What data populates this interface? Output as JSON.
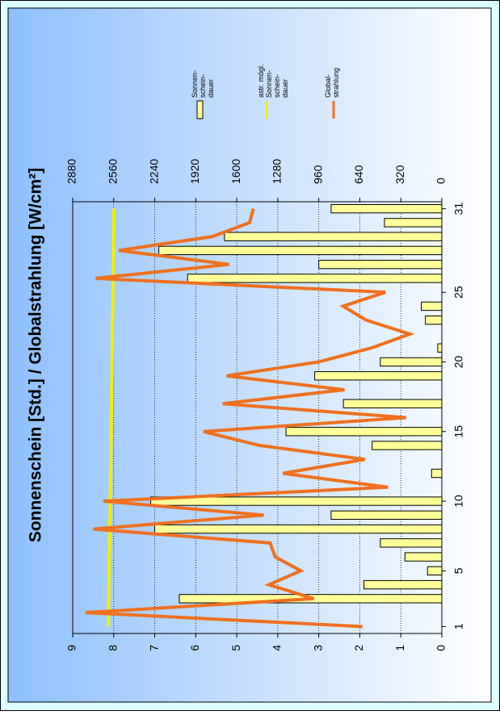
{
  "chart_data": {
    "type": "bar",
    "title": "Sonnenschein [Std.] / Globalstrahlung [W/cm²]",
    "x": [
      1,
      2,
      3,
      4,
      5,
      6,
      7,
      8,
      9,
      10,
      11,
      12,
      13,
      14,
      15,
      16,
      17,
      18,
      19,
      20,
      21,
      22,
      23,
      24,
      25,
      26,
      27,
      28,
      29,
      30,
      31
    ],
    "xlim": [
      0.5,
      31.5
    ],
    "xticks": [
      1,
      5,
      10,
      15,
      20,
      25,
      31
    ],
    "ylim": [
      0,
      9
    ],
    "yticks": [
      0,
      1,
      2,
      3,
      4,
      5,
      6,
      7,
      8,
      9
    ],
    "y2lim": [
      0,
      2880
    ],
    "y2ticks": [
      0,
      320,
      640,
      960,
      1280,
      1600,
      1920,
      2240,
      2560,
      2880
    ],
    "grid": true,
    "series": [
      {
        "name": "Sonnen-\nschein-\ndauer",
        "type": "bar",
        "color": "#ffff99",
        "values": [
          0,
          0,
          6.4,
          1.9,
          0.35,
          0.9,
          1.5,
          7.0,
          2.7,
          7.1,
          0,
          0.25,
          0,
          1.7,
          3.8,
          0,
          2.4,
          0,
          3.1,
          1.5,
          0.1,
          0,
          0.4,
          0.5,
          0,
          6.2,
          3.0,
          6.9,
          5.3,
          1.4,
          2.7
        ]
      },
      {
        "name": "astr. mögl.\nSonnen-\nschein-\ndauer",
        "type": "line",
        "color": "#f0f000",
        "values": [
          8.13,
          8.13,
          8.12,
          8.12,
          8.11,
          8.11,
          8.1,
          8.1,
          8.09,
          8.09,
          8.08,
          8.08,
          8.07,
          8.07,
          8.06,
          8.06,
          8.05,
          8.05,
          8.04,
          8.04,
          8.03,
          8.03,
          8.03,
          8.02,
          8.02,
          8.02,
          8.01,
          8.01,
          8.01,
          8.0,
          8.0
        ]
      },
      {
        "name": "Global-\nstrahlung",
        "type": "line",
        "color": "#f07020",
        "axis": "y2",
        "values": [
          620,
          2780,
          1000,
          1350,
          1100,
          1300,
          1340,
          2720,
          1390,
          2640,
          420,
          1240,
          600,
          1420,
          1860,
          280,
          1710,
          760,
          1680,
          960,
          550,
          250,
          590,
          770,
          440,
          2700,
          1660,
          2520,
          1790,
          1500,
          1470
        ]
      }
    ]
  }
}
